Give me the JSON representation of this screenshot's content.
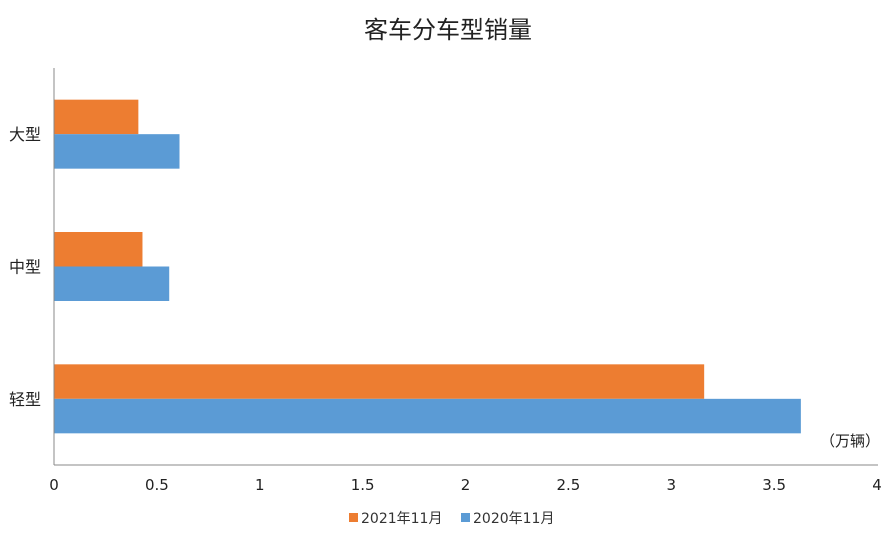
{
  "chart_data": {
    "type": "bar",
    "orientation": "horizontal",
    "title": "客车分车型销量",
    "unit_label": "（万辆）",
    "categories": [
      "大型",
      "中型",
      "轻型"
    ],
    "series": [
      {
        "name": "2021年11月",
        "color": "#ED7D31",
        "values": [
          0.41,
          0.43,
          3.16
        ]
      },
      {
        "name": "2020年11月",
        "color": "#5B9BD5",
        "values": [
          0.61,
          0.56,
          3.63
        ]
      }
    ],
    "xlim": [
      0,
      4
    ],
    "xticks": [
      "0",
      "0.5",
      "1",
      "1.5",
      "2",
      "2.5",
      "3",
      "3.5",
      "4"
    ],
    "grid": false,
    "legend": "bottom"
  }
}
